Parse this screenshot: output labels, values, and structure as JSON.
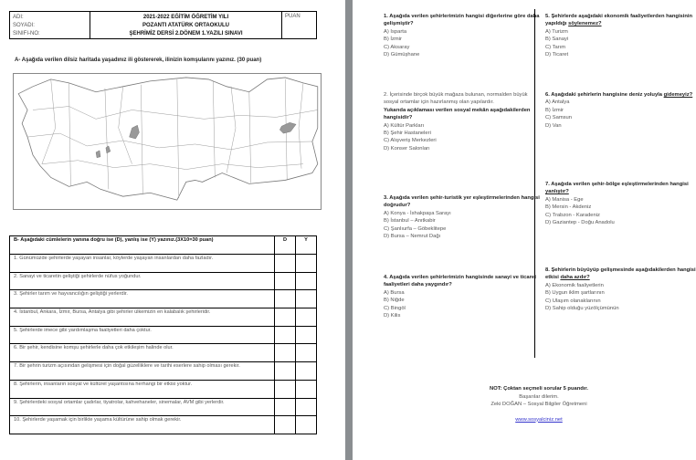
{
  "header": {
    "ad": "ADI:",
    "soyad": "SOYADI:",
    "sinif": "SINIFI-NO:",
    "year": "2021-2022 EĞİTİM ÖĞRETİM YILI",
    "school": "POZANTI ATATÜRK ORTAOKULU",
    "exam": "ŞEHRİMİZ DERSİ 2.DÖNEM 1.YAZILI SINAVI",
    "puan": "PUAN"
  },
  "sectionA": {
    "title": "A- Aşağıda verilen dilsiz haritada yaşadınız ili göstererek, ilinizin komşularını yazınız. (30 puan)"
  },
  "sectionB": {
    "title": "B- Aşağıdaki cümlelerin yanına doğru ise (D), yanlış ise (Y) yazınız.(3X10=30 puan)",
    "d": "D",
    "y": "Y",
    "items": [
      "1. Günümüzde şehirlerde yaşayan insanlar, köylerde yaşayan insanlardan daha fazladır.",
      "2. Sanayi ve ticaretin geliştiği şehirlerde nüfus yoğundur.",
      "3. Şehirler tarım ve hayvancılığın geliştiği yerlerdir.",
      "4. İstanbul, Ankara, İzmir, Bursa, Antalya gibi şehirler ülkemizin en kalabalık şehirleridir.",
      "5. Şehirlerde imece gibi yardımlaşma faaliyetleri daha çoktur.",
      "6. Bir şehir, kendisine komşu şehirlerle daha çok etkileşim halinde olur.",
      "7. Bir şehrin turizm açısından gelişmesi için doğal güzelliklere ve tarihi eserlere sahip olması gerekir.",
      "8. Şehirlerin, insanların sosyal ve kültürel yaşantısına herhangi bir etkisi yoktur.",
      "9. Şehirlerdeki sosyal ortamlar çadırlar, tiyatrolar, kahvehaneler, sinemalar, AVM gibi yerlerdir.",
      "10. Şehirlerde yaşamak için birlikte yaşama kültürüne sahip olmak gerekir."
    ]
  },
  "questions": [
    {
      "pre": "1. Aşağıda verilen şehirlerimizin hangisi diğerlerine göre daha gelişmiştir?",
      "u": "",
      "post": "",
      "opts": [
        "A) Isparta",
        "B) İzmir",
        "C) Aksaray",
        "D) Gümüşhane"
      ]
    },
    {
      "intro": "2. İçerisinde birçok büyük mağaza bulunan, normalden büyük sosyal ortamlar için hazırlanmış olan yapılardır.",
      "pre": "Yukarıda açıklaması verilen sosyal mekân aşağıdakilerden hangisidir?",
      "u": "",
      "post": "",
      "opts": [
        "A) Kültür Parkları",
        "B) Şehir Hastaneleri",
        "C) Alışveriş Merkezleri",
        "D) Konser Salonları"
      ]
    },
    {
      "pre": "3. Aşağıda verilen şehir-turistik yer eşleştirmelerinden hangisi doğrudur?",
      "u": "",
      "post": "",
      "opts": [
        "A) Konya - İshakpaşa Sarayı",
        "B) İstanbul – Anıtkabir",
        "C) Şanlıurfa – Göbeklitepe",
        "D) Bursa – Nemrut Dağı"
      ]
    },
    {
      "pre": "4. Aşağıda verilen şehirlerimizin hangisinde sanayi ve ticaret faaliyetleri daha yaygındır?",
      "u": "",
      "post": "",
      "opts": [
        "A) Bursa",
        "B) Niğde",
        "C) Bingöl",
        "D) Kilis"
      ]
    },
    {
      "pre": "5. Şehirlerde aşağıdaki ekonomik faaliyetlerden hangisinin yapıldığı ",
      "u": "söylenemez?",
      "post": "",
      "opts": [
        "A) Turizm",
        "B) Sanayi",
        "C) Tarım",
        "D) Ticaret"
      ]
    },
    {
      "pre": "6. Aşağıdaki şehirlerin hangisine deniz yoluyla ",
      "u": "gidemeyiz?",
      "post": "",
      "opts": [
        "A) Antalya",
        "B) İzmir",
        "C) Samsun",
        "D) Van"
      ]
    },
    {
      "pre": "7. Aşağıda verilen şehir-bölge eşleştirmelerinden hangisi ",
      "u": "yanlıştır?",
      "post": "",
      "opts": [
        "A) Manisa - Ege",
        "B) Mersin - Akdeniz",
        "C) Trabzon - Karadeniz",
        "D) Gaziantep - Doğu Anadolu"
      ]
    },
    {
      "pre": "8. Şehirlerin büyüyüp gelişmesinde aşağıdakilerden hangisinin etkisi ",
      "u": "daha azdır?",
      "post": "",
      "opts": [
        "A) Ekonomik faaliyetlerin",
        "B) Uygun iklim şartlarının",
        "C) Ulaşım olanaklarının",
        "D) Sahip olduğu yüzölçümünün"
      ]
    }
  ],
  "footer": {
    "note": "NOT: Çoktan seçmeli sorular 5 puandır.",
    "wish": "Başarılar dilerim.",
    "teacher": "Zeki DOĞAN – Sosyal Bilgiler Öğretmeni",
    "link": "www.sosyalciniz.net"
  },
  "colors": {
    "gap": "#8a8e91",
    "link": "#3333cc",
    "lake": "#999999"
  }
}
